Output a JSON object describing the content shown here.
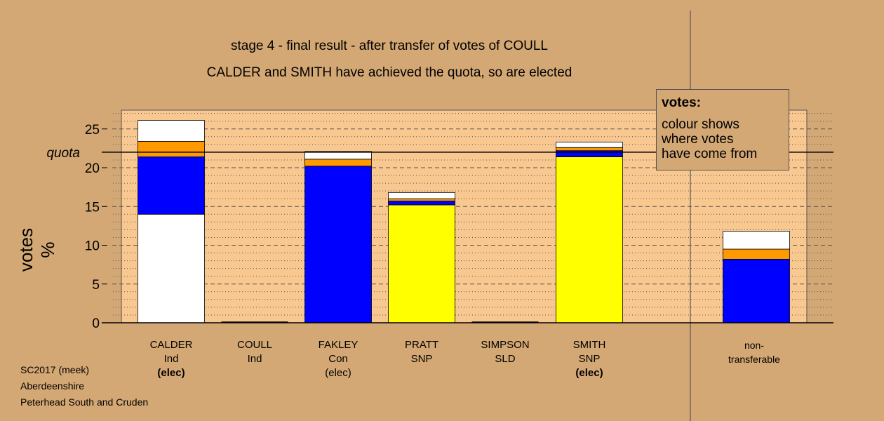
{
  "chart_data": {
    "type": "bar",
    "stacked": true,
    "title": "stage 4 - final result - after transfer of votes of COULL",
    "subtitle": "CALDER and SMITH have achieved the quota, so are elected",
    "ylabel": "votes %",
    "ylim": [
      0,
      27.5
    ],
    "yticks": [
      0,
      5,
      10,
      15,
      20,
      25
    ],
    "quota": 22.0,
    "quota_label": "quota",
    "grid": "dotted minor, dashed major",
    "categories": [
      {
        "name": "CALDER",
        "party": "Ind",
        "status": "(elec)",
        "status_bold": true
      },
      {
        "name": "COULL",
        "party": "Ind",
        "status": "",
        "status_bold": false
      },
      {
        "name": "FAKLEY",
        "party": "Con",
        "status": "(elec)",
        "status_bold": false
      },
      {
        "name": "PRATT",
        "party": "SNP",
        "status": "",
        "status_bold": false
      },
      {
        "name": "SIMPSON",
        "party": "SLD",
        "status": "",
        "status_bold": false
      },
      {
        "name": "SMITH",
        "party": "SNP",
        "status": "(elec)",
        "status_bold": true
      }
    ],
    "series": [
      {
        "color": "#ffffff",
        "values": [
          14.0,
          0,
          0,
          0,
          0,
          0
        ]
      },
      {
        "color": "#ffff00",
        "values": [
          0,
          0,
          0,
          15.2,
          0,
          21.4
        ]
      },
      {
        "color": "#0000ff",
        "values": [
          7.4,
          0,
          20.2,
          0.5,
          0,
          0.8
        ]
      },
      {
        "color": "#ff9900",
        "values": [
          2.0,
          0,
          0.9,
          0.3,
          0,
          0.4
        ]
      },
      {
        "color": "#ffffff",
        "values": [
          2.7,
          0,
          1.0,
          0.8,
          0,
          0.7
        ]
      }
    ],
    "non_transferable": {
      "label_line1": "non-",
      "label_line2": "transferable",
      "segments": [
        {
          "color": "#0000ff",
          "value": 8.2
        },
        {
          "color": "#ff9900",
          "value": 1.3
        },
        {
          "color": "#ffffff",
          "value": 2.3
        }
      ]
    }
  },
  "legend": {
    "title": "votes:",
    "line1": "colour shows",
    "line2": "where votes",
    "line3": "have come from"
  },
  "footer": {
    "line1": "SC2017 (meek)",
    "line2": "Aberdeenshire",
    "line3": "Peterhead South and Cruden"
  },
  "colors": {
    "background": "#d4a874",
    "plot_area": "#f8c890"
  }
}
